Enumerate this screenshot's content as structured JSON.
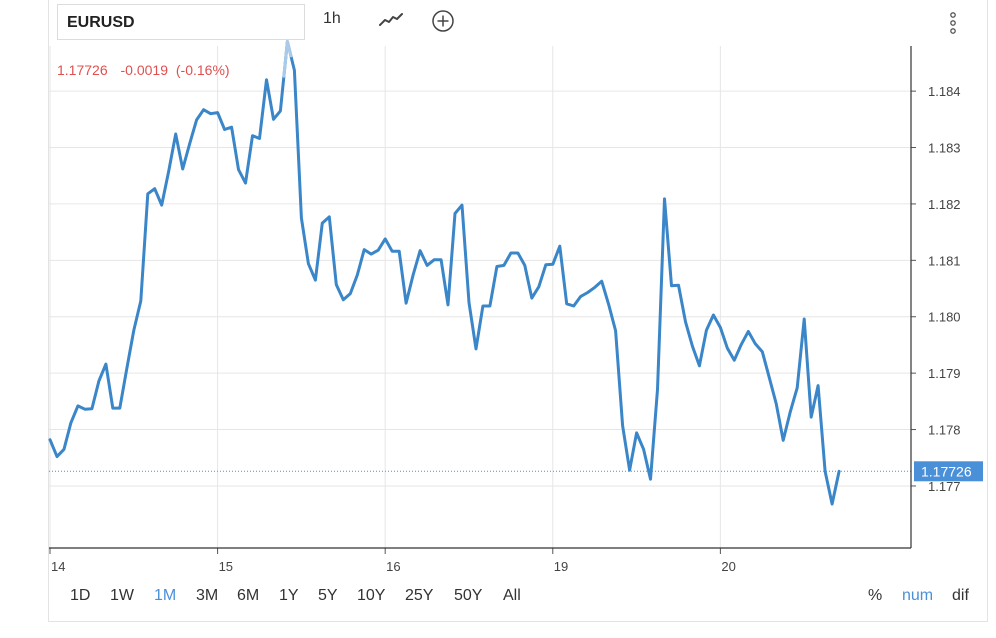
{
  "toolbar": {
    "symbol": "EURUSD",
    "interval": "1h",
    "icons": [
      "line-chart-icon",
      "add-indicator-icon",
      "more-options-icon"
    ]
  },
  "quote": {
    "price": "1.17726",
    "change": "-0.0019",
    "change_pct": "(-0.16%)",
    "color": "#e05050"
  },
  "last_price_label": "1.17726",
  "ranges": [
    {
      "label": "1D",
      "active": false
    },
    {
      "label": "1W",
      "active": false
    },
    {
      "label": "1M",
      "active": true
    },
    {
      "label": "3M",
      "active": false
    },
    {
      "label": "6M",
      "active": false
    },
    {
      "label": "1Y",
      "active": false
    },
    {
      "label": "5Y",
      "active": false
    },
    {
      "label": "10Y",
      "active": false
    },
    {
      "label": "25Y",
      "active": false
    },
    {
      "label": "50Y",
      "active": false
    },
    {
      "label": "All",
      "active": false
    }
  ],
  "modes": [
    {
      "label": "%",
      "active": false
    },
    {
      "label": "num",
      "active": true
    },
    {
      "label": "dif",
      "active": false
    }
  ],
  "colors": {
    "line": "#3a86c8",
    "accent": "#4a90d9",
    "price_tag_bg": "#4a90d9",
    "negative": "#e05050",
    "grid": "#e6e6e6"
  },
  "chart_data": {
    "type": "line",
    "title": "",
    "xlabel": "",
    "ylabel": "",
    "y_ticks": [
      1.177,
      1.178,
      1.179,
      1.18,
      1.181,
      1.182,
      1.183,
      1.184
    ],
    "ylim": [
      1.1759,
      1.1848
    ],
    "x_ticks": [
      {
        "label": "14",
        "x": 0
      },
      {
        "label": "15",
        "x": 24
      },
      {
        "label": "16",
        "x": 48
      },
      {
        "label": "19",
        "x": 72
      },
      {
        "label": "20",
        "x": 96
      }
    ],
    "xlim": [
      0,
      118
    ],
    "grid": true,
    "last_value": 1.17726,
    "series": [
      {
        "values": [
          1.17782,
          1.17752,
          1.17765,
          1.17812,
          1.17842,
          1.17836,
          1.17837,
          1.17886,
          1.17916,
          1.17838,
          1.17838,
          1.17908,
          1.17976,
          1.18028,
          1.18218,
          1.18227,
          1.18198,
          1.18258,
          1.18324,
          1.18262,
          1.18307,
          1.18349,
          1.18367,
          1.1836,
          1.18362,
          1.18332,
          1.18336,
          1.18261,
          1.18237,
          1.18321,
          1.18316,
          1.1842,
          1.1835,
          1.18365,
          1.18488,
          1.18437,
          1.18175,
          1.18094,
          1.18065,
          1.18166,
          1.18177,
          1.18057,
          1.1803,
          1.18041,
          1.18074,
          1.18119,
          1.18111,
          1.18118,
          1.18138,
          1.18116,
          1.18116,
          1.18024,
          1.18074,
          1.18117,
          1.18091,
          1.18101,
          1.18101,
          1.18021,
          1.18183,
          1.18198,
          1.18025,
          1.17943,
          1.18019,
          1.18019,
          1.18089,
          1.18091,
          1.18113,
          1.18113,
          1.18091,
          1.18033,
          1.18053,
          1.18092,
          1.18093,
          1.18125,
          1.18023,
          1.18019,
          1.18036,
          1.18043,
          1.18052,
          1.18063,
          1.18022,
          1.17975,
          1.17807,
          1.17728,
          1.17794,
          1.17765,
          1.17712,
          1.17871,
          1.18209,
          1.18055,
          1.18056,
          1.17991,
          1.17948,
          1.17913,
          1.17976,
          1.18003,
          1.17981,
          1.17944,
          1.17923,
          1.17951,
          1.17974,
          1.17952,
          1.17938,
          1.17892,
          1.17846,
          1.17781,
          1.17831,
          1.17874,
          1.17996,
          1.17822,
          1.17878,
          1.17726,
          1.17668,
          1.17726
        ]
      }
    ]
  }
}
